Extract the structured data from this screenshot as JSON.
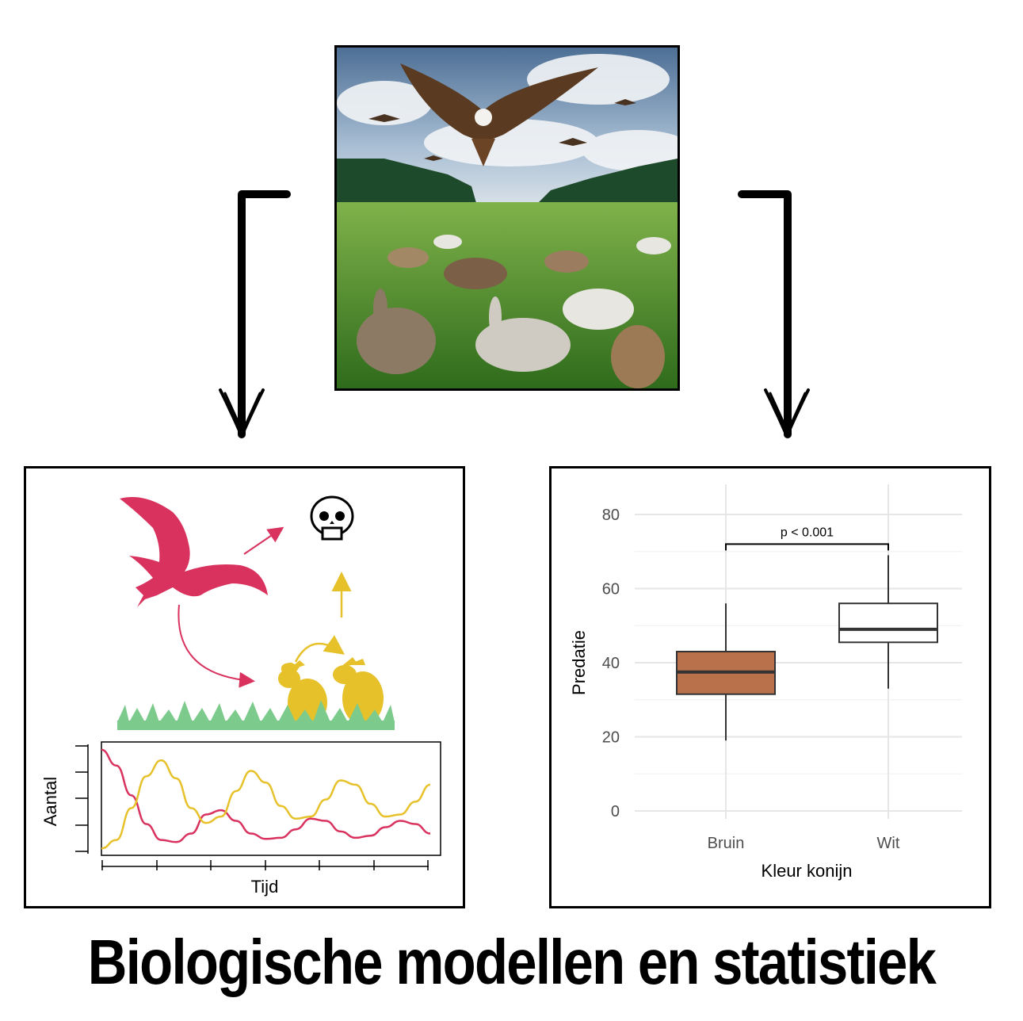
{
  "title": "Biologische modellen en statistiek",
  "colors": {
    "predator": "#d9325e",
    "prey": "#e6c12a",
    "grass": "#7ccb8c",
    "box_bruin": "#b8714a",
    "box_wit": "#ffffff"
  },
  "model_panel": {
    "xlabel": "Tijd",
    "ylabel": "Aantal",
    "icons": [
      "eagle-icon",
      "skull-icon",
      "rabbit-icon",
      "rabbit-icon",
      "grass-icon"
    ],
    "series": [
      {
        "color": "#d9325e",
        "values": [
          95,
          80,
          52,
          25,
          10,
          8,
          16,
          34,
          38,
          28,
          16,
          11,
          12,
          20,
          30,
          28,
          18,
          12,
          14,
          22,
          28,
          25,
          16
        ]
      },
      {
        "color": "#e6c12a",
        "values": [
          2,
          10,
          40,
          70,
          85,
          68,
          40,
          26,
          32,
          56,
          75,
          64,
          42,
          30,
          32,
          48,
          66,
          62,
          44,
          32,
          34,
          46,
          62
        ]
      }
    ]
  },
  "chart_data": {
    "type": "box",
    "xlabel": "Kleur konijn",
    "ylabel": "Predatie",
    "categories": [
      "Bruin",
      "Wit"
    ],
    "ylim": [
      0,
      80
    ],
    "yticks": [
      0,
      20,
      40,
      60,
      80
    ],
    "grid": true,
    "boxes": [
      {
        "category": "Bruin",
        "min": 19,
        "q1": 31.5,
        "median": 37.5,
        "q3": 43,
        "max": 56,
        "color": "#b8714a"
      },
      {
        "category": "Wit",
        "min": 33,
        "q1": 45.5,
        "median": 49,
        "q3": 56,
        "max": 69,
        "color": "#ffffff"
      }
    ],
    "annotation": "p < 0.001"
  }
}
